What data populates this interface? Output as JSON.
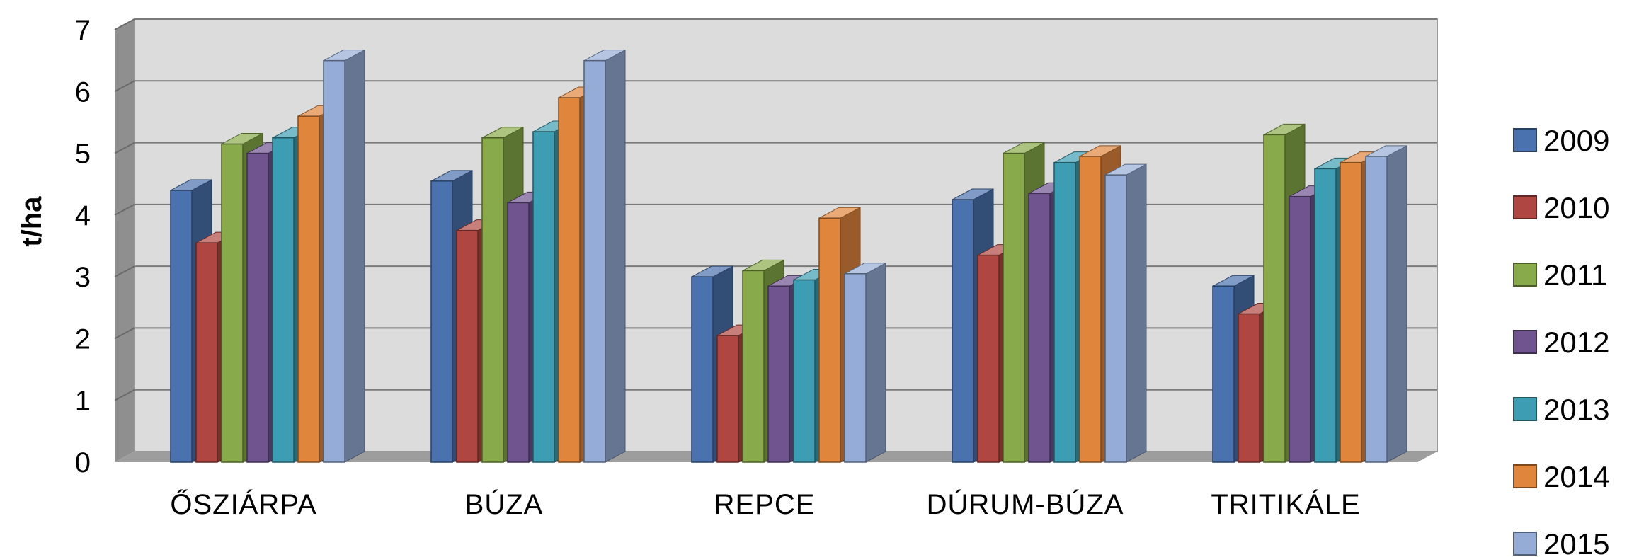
{
  "chart_data": {
    "type": "bar",
    "style": "3d-clustered-column",
    "ylabel": "t/ha",
    "xlabel": "",
    "title": "",
    "ylim": [
      0,
      7
    ],
    "yticks": [
      "0",
      "1",
      "2",
      "3",
      "4",
      "5",
      "6",
      "7"
    ],
    "grid": true,
    "legend_position": "right",
    "categories": [
      "ŐSZIÁRPA",
      "BÚZA",
      "REPCE",
      "DÚRUM-BÚZA",
      "TRITIKÁLE"
    ],
    "series": [
      {
        "name": "2009",
        "color": "#4a72ae",
        "values": [
          4.4,
          4.55,
          3.0,
          4.25,
          2.85
        ]
      },
      {
        "name": "2010",
        "color": "#b04642",
        "values": [
          3.55,
          3.75,
          2.05,
          3.35,
          2.4
        ]
      },
      {
        "name": "2011",
        "color": "#88aa4a",
        "values": [
          5.15,
          5.25,
          3.1,
          5.0,
          5.3
        ]
      },
      {
        "name": "2012",
        "color": "#6f548f",
        "values": [
          5.0,
          4.2,
          2.85,
          4.35,
          4.3
        ]
      },
      {
        "name": "2013",
        "color": "#3d9db2",
        "values": [
          5.25,
          5.35,
          2.95,
          4.85,
          4.75
        ]
      },
      {
        "name": "2014",
        "color": "#e0863c",
        "values": [
          5.6,
          5.9,
          3.95,
          4.95,
          4.85
        ]
      },
      {
        "name": "2015",
        "color": "#95acd6",
        "values": [
          6.5,
          6.5,
          3.05,
          4.65,
          4.95
        ]
      }
    ]
  }
}
